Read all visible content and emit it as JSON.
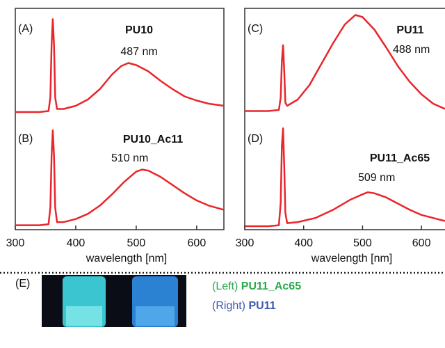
{
  "chart_data": [
    {
      "type": "line",
      "panel": "(A)",
      "name": "PU10",
      "peak": "487 nm",
      "color": "#e8262b",
      "x": [
        300,
        340,
        355,
        358,
        360,
        362,
        364,
        366,
        369,
        380,
        400,
        420,
        440,
        460,
        475,
        487,
        500,
        520,
        540,
        560,
        580,
        600,
        620,
        645
      ],
      "values": [
        6,
        6,
        7,
        20,
        70,
        95,
        70,
        20,
        9,
        9,
        12,
        18,
        28,
        42,
        50,
        53,
        51,
        45,
        36,
        28,
        21,
        17,
        14,
        12
      ],
      "xlim": [
        300,
        645
      ],
      "ylim": [
        0,
        100
      ]
    },
    {
      "type": "line",
      "panel": "(B)",
      "name": "PU10_Ac11",
      "peak": "510 nm",
      "color": "#e8262b",
      "x": [
        300,
        340,
        355,
        358,
        360,
        362,
        364,
        366,
        369,
        380,
        400,
        420,
        440,
        460,
        480,
        500,
        510,
        520,
        540,
        560,
        580,
        600,
        620,
        645
      ],
      "values": [
        3,
        3,
        4,
        20,
        70,
        95,
        70,
        20,
        6,
        6,
        9,
        14,
        22,
        33,
        45,
        55,
        57,
        56,
        50,
        42,
        34,
        27,
        22,
        18
      ],
      "xlim": [
        300,
        645
      ],
      "ylim": [
        0,
        100
      ],
      "xticks": [
        300,
        400,
        500,
        600
      ],
      "xlabel": "wavelength [nm]"
    },
    {
      "type": "line",
      "panel": "(C)",
      "name": "PU11",
      "peak": "488 nm",
      "color": "#e8262b",
      "x": [
        300,
        340,
        358,
        361,
        363,
        365,
        367,
        369,
        372,
        390,
        410,
        430,
        450,
        470,
        488,
        500,
        520,
        540,
        560,
        580,
        600,
        620,
        640
      ],
      "values": [
        7,
        7,
        8,
        20,
        55,
        70,
        45,
        15,
        12,
        18,
        32,
        52,
        72,
        90,
        99,
        97,
        85,
        68,
        50,
        35,
        23,
        14,
        9
      ],
      "xlim": [
        300,
        640
      ],
      "ylim": [
        0,
        100
      ]
    },
    {
      "type": "line",
      "panel": "(D)",
      "name": "PU11_Ac65",
      "peak": "509 nm",
      "color": "#e8262b",
      "x": [
        300,
        340,
        358,
        361,
        363,
        365,
        367,
        369,
        372,
        390,
        420,
        450,
        480,
        500,
        509,
        520,
        540,
        560,
        580,
        600,
        620,
        640
      ],
      "values": [
        2,
        2,
        3,
        25,
        80,
        97,
        60,
        15,
        5,
        6,
        10,
        18,
        28,
        33,
        35,
        34,
        30,
        24,
        18,
        13,
        10,
        7
      ],
      "xlim": [
        300,
        640
      ],
      "ylim": [
        0,
        100
      ],
      "xticks": [
        300,
        400,
        500,
        600
      ],
      "xlabel": "wavelength [nm]"
    }
  ],
  "panel_e": {
    "label": "(E)",
    "left_prefix": "(Left)",
    "left_name": "PU11_Ac65",
    "right_prefix": "(Right)",
    "right_name": "PU11"
  }
}
